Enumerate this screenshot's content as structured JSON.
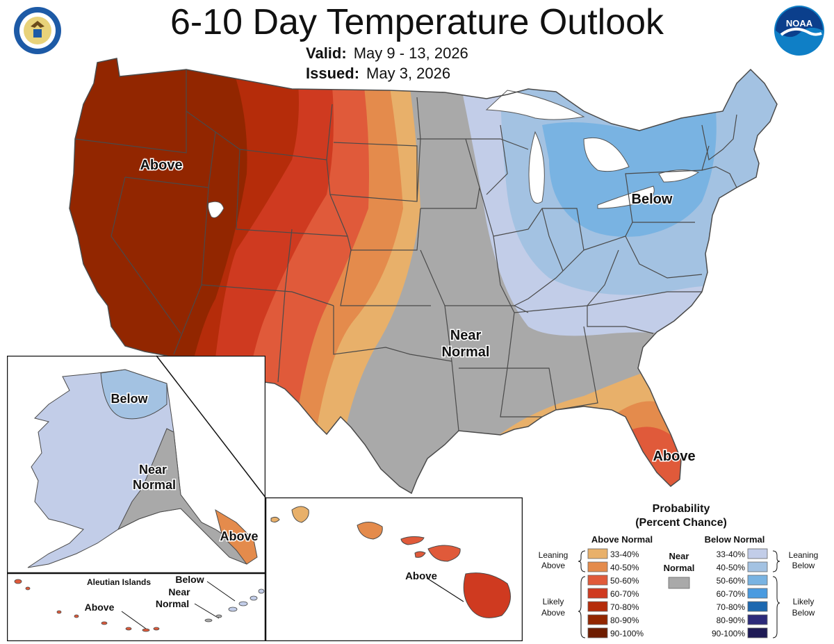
{
  "header": {
    "title": "6-10 Day Temperature Outlook",
    "valid_label": "Valid:",
    "valid_value": "May 9 - 13, 2026",
    "issued_label": "Issued:",
    "issued_value": "May 3, 2026"
  },
  "logos": {
    "left": "department-of-commerce-seal",
    "right": "noaa-logo",
    "noaa_text": "NOAA"
  },
  "map_labels": {
    "west_above": "Above",
    "east_below": "Below",
    "central_near": "Near",
    "central_normal": "Normal",
    "florida_above": "Above",
    "alaska_below": "Below",
    "alaska_near": "Near",
    "alaska_normal": "Normal",
    "alaska_above": "Above",
    "aleutian_title": "Aleutian Islands",
    "aleutian_below": "Below",
    "aleutian_near": "Near",
    "aleutian_normal": "Normal",
    "aleutian_above": "Above",
    "hawaii_above": "Above"
  },
  "legend": {
    "title_line1": "Probability",
    "title_line2": "(Percent Chance)",
    "above_header": "Above Normal",
    "below_header": "Below Normal",
    "near_line1": "Near",
    "near_line2": "Normal",
    "leaning_above_1": "Leaning",
    "leaning_above_2": "Above",
    "likely_above_1": "Likely",
    "likely_above_2": "Above",
    "leaning_below_1": "Leaning",
    "leaning_below_2": "Below",
    "likely_below_1": "Likely",
    "likely_below_2": "Below",
    "above_bins": [
      {
        "label": "33-40%",
        "color": "#e8b06a"
      },
      {
        "label": "40-50%",
        "color": "#e48b4c"
      },
      {
        "label": "50-60%",
        "color": "#e05a3a"
      },
      {
        "label": "60-70%",
        "color": "#cf3a20"
      },
      {
        "label": "70-80%",
        "color": "#b52c0a"
      },
      {
        "label": "80-90%",
        "color": "#922600"
      },
      {
        "label": "90-100%",
        "color": "#6e1c00"
      }
    ],
    "below_bins": [
      {
        "label": "33-40%",
        "color": "#c2cde8"
      },
      {
        "label": "40-50%",
        "color": "#a3c2e2"
      },
      {
        "label": "50-60%",
        "color": "#79b3e2"
      },
      {
        "label": "60-70%",
        "color": "#4a9be0"
      },
      {
        "label": "70-80%",
        "color": "#1c68b0"
      },
      {
        "label": "80-90%",
        "color": "#2c2a7a"
      },
      {
        "label": "90-100%",
        "color": "#1e1a55"
      }
    ],
    "near_color": "#a9a9a9"
  }
}
